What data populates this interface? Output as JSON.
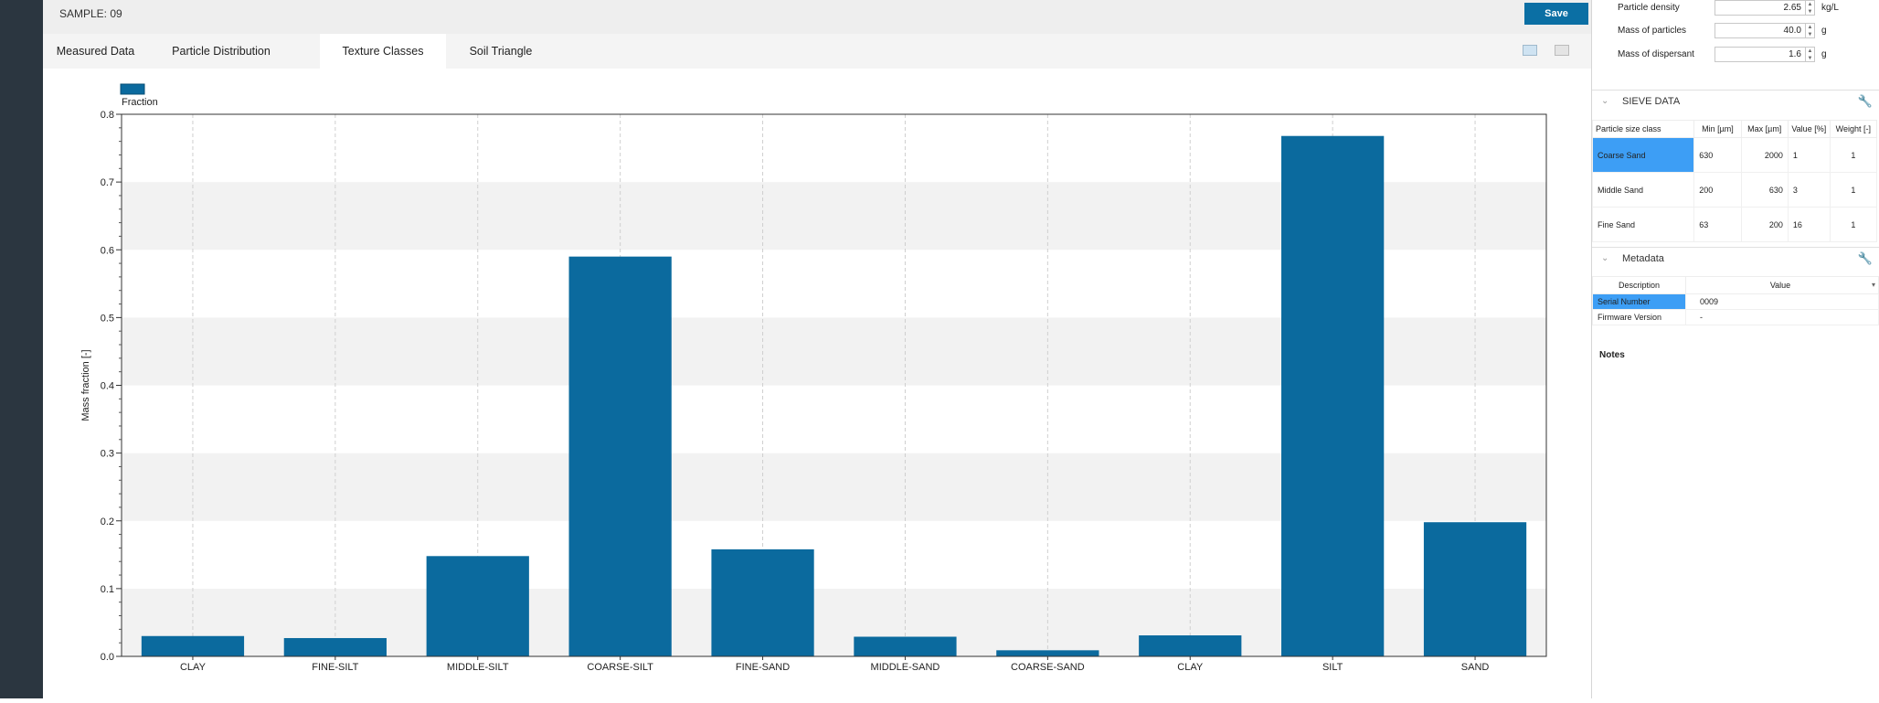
{
  "header": {
    "sample_label": "SAMPLE:",
    "sample_value": "09",
    "save_label": "Save"
  },
  "tabs": [
    {
      "label": "Measured Data"
    },
    {
      "label": "Particle Distribution"
    },
    {
      "label": "Texture Classes",
      "active": true
    },
    {
      "label": "Soil Triangle"
    }
  ],
  "chart_data": {
    "type": "bar",
    "categories": [
      "CLAY",
      "FINE-SILT",
      "MIDDLE-SILT",
      "COARSE-SILT",
      "FINE-SAND",
      "MIDDLE-SAND",
      "COARSE-SAND",
      "CLAY",
      "SILT",
      "SAND"
    ],
    "series": [
      {
        "name": "Fraction",
        "values": [
          0.03,
          0.027,
          0.148,
          0.59,
          0.158,
          0.029,
          0.009,
          0.031,
          0.768,
          0.198
        ]
      }
    ],
    "ylabel": "Mass fraction [-]",
    "xlabel": "",
    "ylim": [
      0,
      0.8
    ],
    "yticks": [
      "0.0",
      "0.1",
      "0.2",
      "0.3",
      "0.4",
      "0.5",
      "0.6",
      "0.7",
      "0.8"
    ],
    "grid": true,
    "legend_position": "top-left",
    "bar_color": "#0b6a9e"
  },
  "properties": [
    {
      "label": "Particle density",
      "value": "2.65",
      "unit": "kg/L"
    },
    {
      "label": "Mass of particles",
      "value": "40.0",
      "unit": "g"
    },
    {
      "label": "Mass of dispersant",
      "value": "1.6",
      "unit": "g"
    }
  ],
  "sieve": {
    "title": "SIEVE DATA",
    "columns": [
      "Particle size class",
      "Min [µm]",
      "Max [µm]",
      "Value [%]",
      "Weight [-]"
    ],
    "rows": [
      [
        "Coarse Sand",
        "630",
        "2000",
        "1",
        "1"
      ],
      [
        "Middle Sand",
        "200",
        "630",
        "3",
        "1"
      ],
      [
        "Fine Sand",
        "63",
        "200",
        "16",
        "1"
      ]
    ]
  },
  "metadata": {
    "title": "Metadata",
    "columns": [
      "Description",
      "Value"
    ],
    "rows": [
      [
        "Serial Number",
        "0009"
      ],
      [
        "Firmware Version",
        "-"
      ]
    ]
  },
  "notes_label": "Notes",
  "colors": {
    "accent": "#0b6fa4",
    "selection": "#3d9ef5",
    "sidebar": "#2b3640"
  }
}
